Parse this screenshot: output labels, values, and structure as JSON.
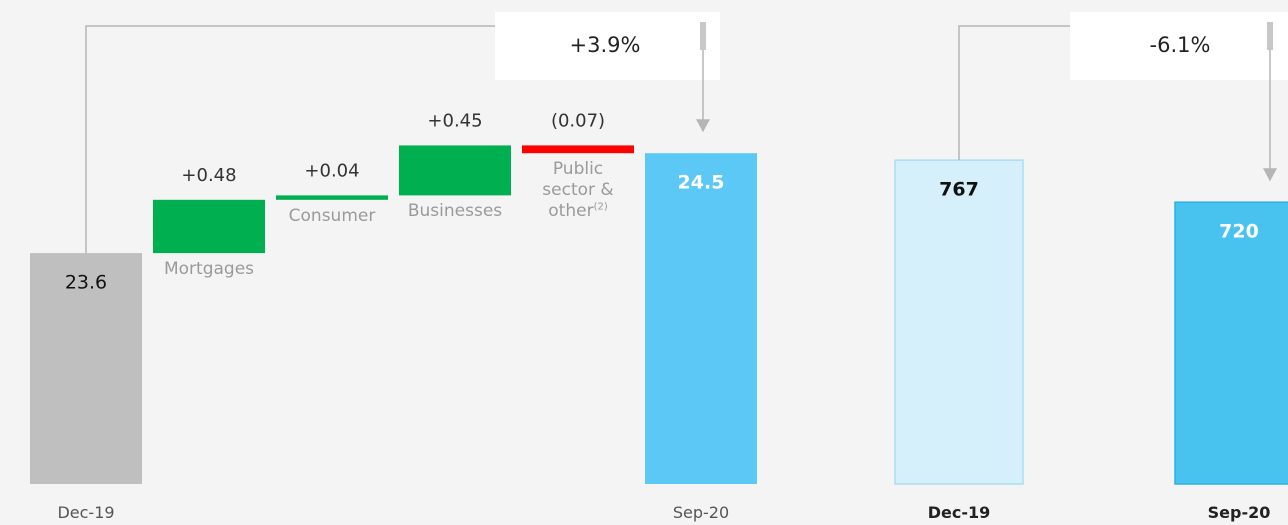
{
  "chart_data": [
    {
      "type": "waterfall",
      "categories": [
        "Dec-19",
        "Mortgages",
        "Consumer",
        "Businesses",
        "Public sector & other",
        "Sep-20"
      ],
      "category_notes": [
        null,
        null,
        null,
        null,
        "(2)",
        null
      ],
      "values": [
        23.6,
        0.48,
        0.04,
        0.45,
        -0.07,
        24.5
      ],
      "value_labels": [
        "23.6",
        "+0.48",
        "+0.04",
        "+0.45",
        "(0.07)",
        "24.5"
      ],
      "is_total": [
        true,
        false,
        false,
        false,
        false,
        true
      ],
      "colors": [
        "#bfbfbf",
        "#00b050",
        "#00b050",
        "#00b050",
        "#ff0000",
        "#5bc8f5"
      ],
      "label_colors": [
        "#111111",
        "#333333",
        "#333333",
        "#333333",
        "#333333",
        "#ffffff"
      ],
      "label_weights": [
        "normal",
        "normal",
        "normal",
        "normal",
        "normal",
        "bold"
      ],
      "annotation": "+3.9%",
      "ylim": [
        21.52,
        25.88
      ]
    },
    {
      "type": "bar",
      "categories": [
        "Dec-19",
        "Sep-20"
      ],
      "values": [
        767,
        720
      ],
      "colors": [
        "#d5f0fa",
        "#48c2ee"
      ],
      "borders": [
        "#a9def4",
        "#2fb0e0"
      ],
      "label_colors": [
        "#111111",
        "#ffffff"
      ],
      "label_weights": [
        "bold",
        "bold"
      ],
      "category_weight": "bold",
      "annotation": "-6.1%",
      "ylim": [
        405,
        946
      ]
    }
  ]
}
